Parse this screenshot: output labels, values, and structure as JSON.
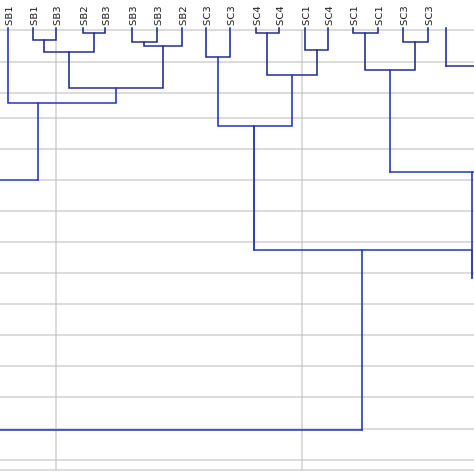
{
  "diagram": {
    "type": "dendrogram",
    "leaves": [
      "SB1",
      "SB1",
      "SB3",
      "SB2",
      "SB3",
      "SB3",
      "SB3",
      "SB2",
      "SC3",
      "SC3",
      "SC4",
      "SC4",
      "SC1",
      "SC4",
      "SC1",
      "SC1",
      "SC3",
      "SC3"
    ],
    "colors": {
      "upper_links": "#1e2a8c",
      "lower_links": "#1f32b8",
      "grid": "#b9b9b9",
      "text": "#222222"
    }
  }
}
